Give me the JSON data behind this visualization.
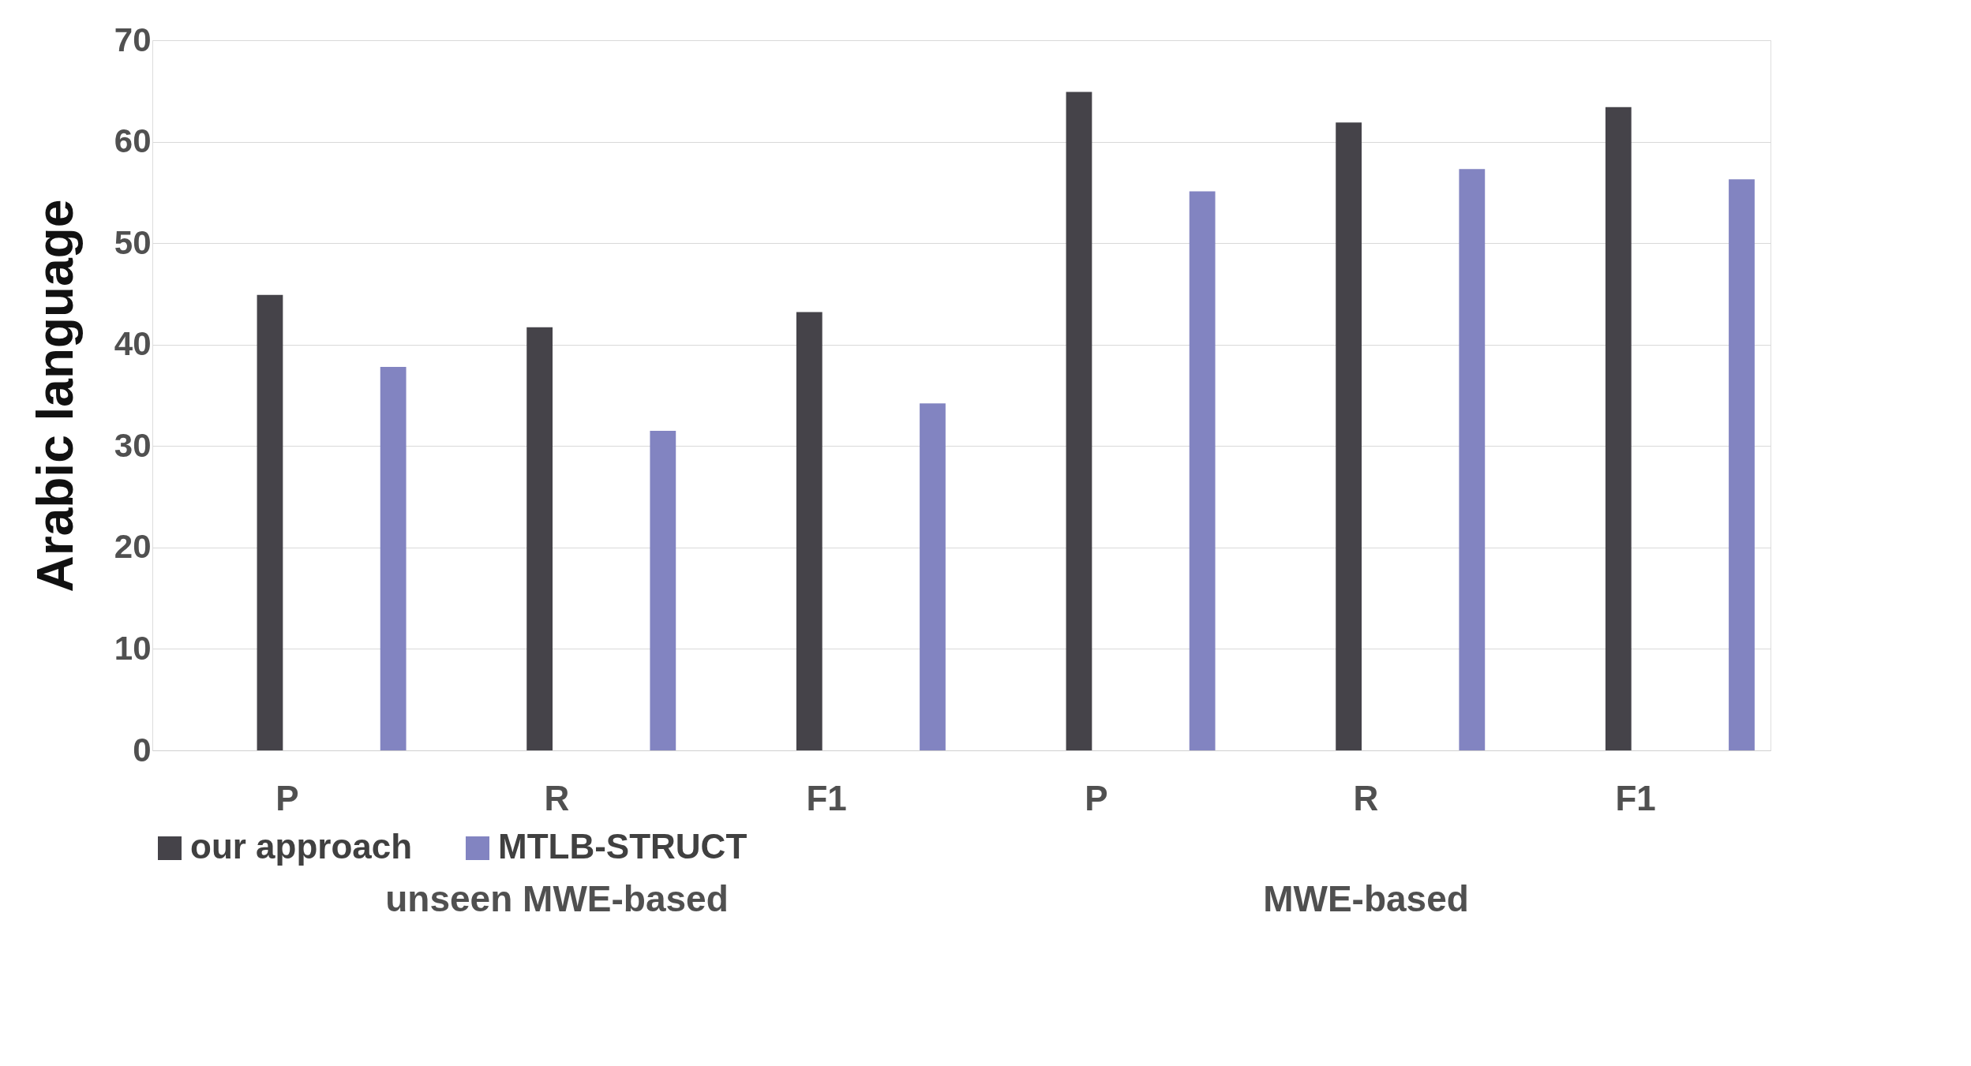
{
  "chart_data": {
    "type": "bar",
    "ylabel": "Arabic language",
    "categories": [
      "P",
      "R",
      "F1",
      "P",
      "R",
      "F1"
    ],
    "series": [
      {
        "name": "our approach",
        "color": "#454349",
        "values": [
          44.9,
          41.7,
          43.2,
          64.9,
          61.9,
          63.4
        ]
      },
      {
        "name": "MTLB-STRUCT",
        "color": "#8284c1",
        "values": [
          37.8,
          31.5,
          34.2,
          55.1,
          57.3,
          56.3
        ]
      }
    ],
    "annotations": [
      "unseen MWE-based",
      "MWE-based"
    ],
    "ylim": [
      0,
      70
    ],
    "yticks": [
      0,
      10,
      20,
      30,
      40,
      50,
      60,
      70
    ],
    "grid": "y",
    "legend": "bottom"
  }
}
